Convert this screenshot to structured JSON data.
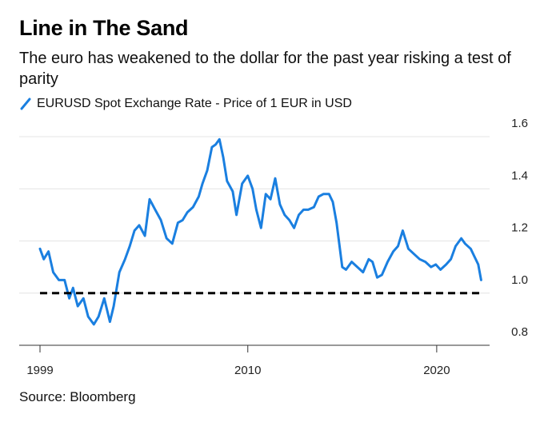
{
  "header": {
    "title": "Line in The Sand",
    "subtitle": "The euro has weakened to the dollar for the past year risking a test of parity"
  },
  "legend": {
    "label": "EURUSD Spot Exchange Rate - Price of 1 EUR in USD",
    "color": "#1a7fe0"
  },
  "source": "Source: Bloomberg",
  "chart_data": {
    "type": "line",
    "title": "Line in The Sand",
    "subtitle": "The euro has weakened to the dollar for the past year risking a test of parity",
    "xlabel": "",
    "ylabel": "",
    "xlim": [
      1999,
      2022.8
    ],
    "ylim": [
      0.8,
      1.6
    ],
    "x_ticks": [
      1999,
      2010,
      2020
    ],
    "x_tick_labels": [
      "1999",
      "2010",
      "2020"
    ],
    "y_ticks": [
      0.8,
      1.0,
      1.2,
      1.4,
      1.6
    ],
    "y_tick_labels": [
      "0.8",
      "1.0",
      "1.2",
      "1.4",
      "1.6"
    ],
    "grid": "horizontal",
    "legend_position": "top-left",
    "series": [
      {
        "name": "EURUSD Spot Exchange Rate - Price of 1 EUR in USD",
        "color": "#1a7fe0",
        "style": "solid",
        "x": [
          1999.0,
          1999.2,
          1999.45,
          1999.7,
          2000.0,
          2000.3,
          2000.55,
          2000.75,
          2001.0,
          2001.3,
          2001.55,
          2001.85,
          2002.1,
          2002.4,
          2002.7,
          2002.9,
          2003.2,
          2003.5,
          2003.75,
          2004.0,
          2004.25,
          2004.55,
          2004.8,
          2005.1,
          2005.4,
          2005.7,
          2006.0,
          2006.3,
          2006.55,
          2006.8,
          2007.1,
          2007.4,
          2007.6,
          2007.85,
          2008.1,
          2008.3,
          2008.5,
          2008.7,
          2008.9,
          2009.2,
          2009.4,
          2009.7,
          2010.0,
          2010.25,
          2010.45,
          2010.7,
          2010.95,
          2011.2,
          2011.45,
          2011.7,
          2011.95,
          2012.2,
          2012.45,
          2012.7,
          2012.95,
          2013.2,
          2013.5,
          2013.75,
          2014.0,
          2014.3,
          2014.5,
          2014.7,
          2015.0,
          2015.2,
          2015.5,
          2015.8,
          2016.1,
          2016.4,
          2016.6,
          2016.85,
          2017.1,
          2017.4,
          2017.7,
          2017.95,
          2018.2,
          2018.5,
          2018.8,
          2019.1,
          2019.4,
          2019.7,
          2019.95,
          2020.2,
          2020.5,
          2020.75,
          2021.0,
          2021.3,
          2021.5,
          2021.8,
          2022.0,
          2022.2,
          2022.35
        ],
        "y": [
          1.17,
          1.13,
          1.16,
          1.08,
          1.05,
          1.05,
          0.98,
          1.02,
          0.95,
          0.98,
          0.91,
          0.88,
          0.91,
          0.98,
          0.89,
          0.95,
          1.08,
          1.13,
          1.18,
          1.24,
          1.26,
          1.22,
          1.36,
          1.32,
          1.28,
          1.21,
          1.19,
          1.27,
          1.28,
          1.31,
          1.33,
          1.37,
          1.42,
          1.47,
          1.56,
          1.57,
          1.59,
          1.52,
          1.43,
          1.39,
          1.3,
          1.42,
          1.45,
          1.4,
          1.32,
          1.25,
          1.38,
          1.36,
          1.44,
          1.34,
          1.3,
          1.28,
          1.25,
          1.3,
          1.32,
          1.32,
          1.33,
          1.37,
          1.38,
          1.38,
          1.35,
          1.27,
          1.1,
          1.09,
          1.12,
          1.1,
          1.08,
          1.13,
          1.12,
          1.06,
          1.07,
          1.12,
          1.16,
          1.18,
          1.24,
          1.17,
          1.15,
          1.13,
          1.12,
          1.1,
          1.11,
          1.09,
          1.11,
          1.13,
          1.18,
          1.21,
          1.19,
          1.17,
          1.14,
          1.11,
          1.05
        ]
      },
      {
        "name": "",
        "color": "#000000",
        "style": "dashed",
        "x": [
          1999.0,
          2022.35
        ],
        "y": [
          1.0,
          1.0
        ]
      }
    ]
  }
}
